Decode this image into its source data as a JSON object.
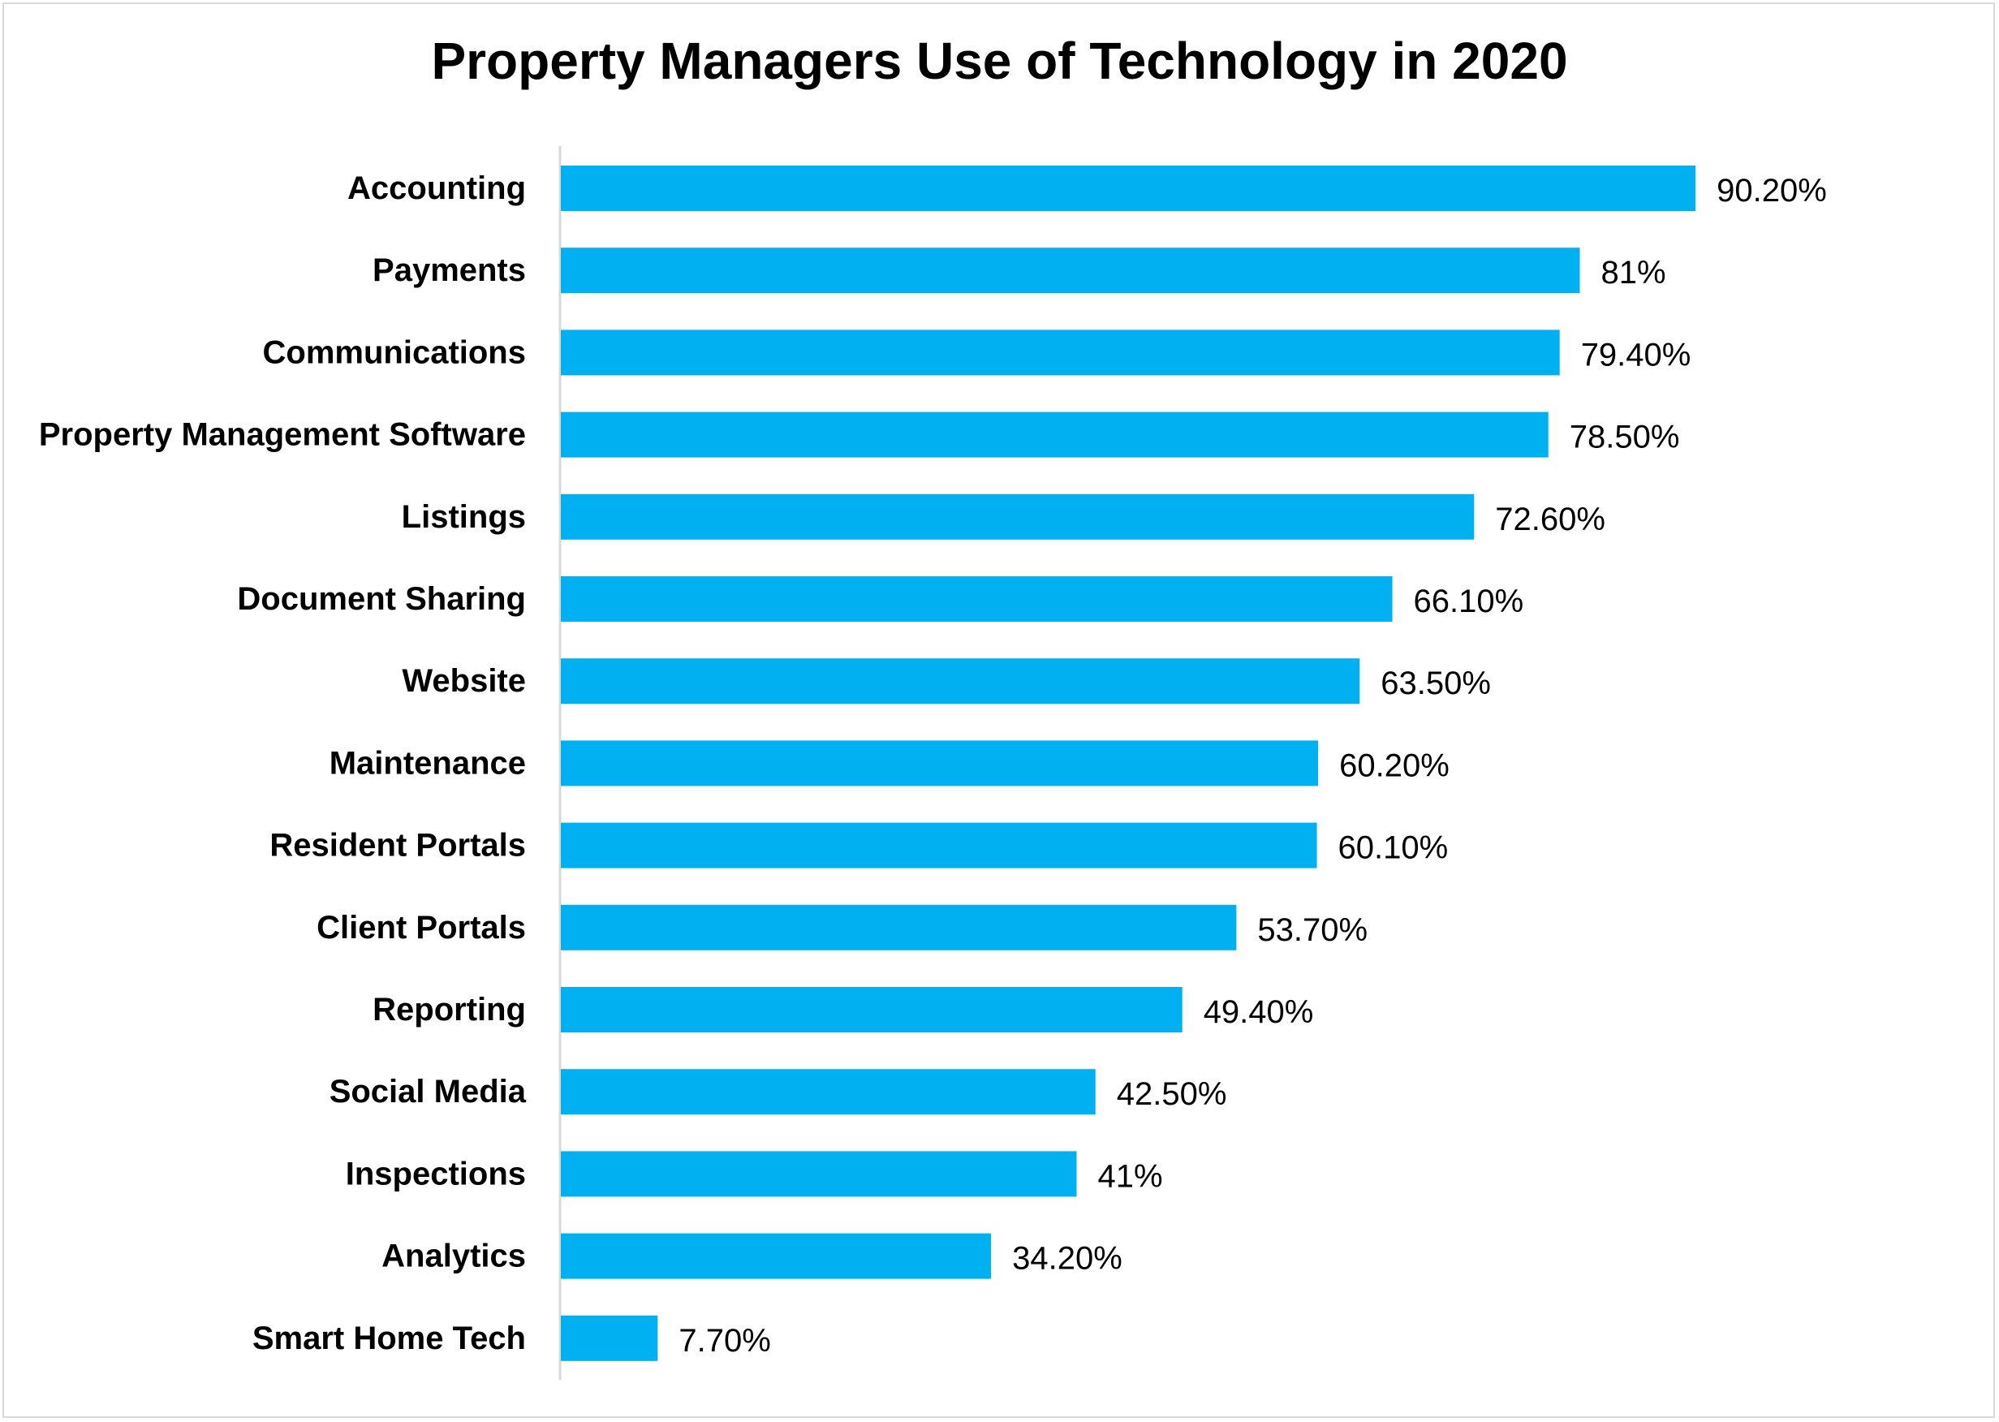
{
  "chart_data": {
    "type": "bar",
    "orientation": "horizontal",
    "title": "Property Managers Use of Technology in 2020",
    "xlabel": "",
    "ylabel": "",
    "xlim": [
      0,
      100
    ],
    "grid": false,
    "legend": "none",
    "bar_color": "#00b0f0",
    "categories": [
      "Accounting",
      "Payments",
      "Communications",
      "Property Management Software",
      "Listings",
      "Document Sharing",
      "Website",
      "Maintenance",
      "Resident Portals",
      "Client Portals",
      "Reporting",
      "Social Media",
      "Inspections",
      "Analytics",
      "Smart Home Tech"
    ],
    "values": [
      90.2,
      81,
      79.4,
      78.5,
      72.6,
      66.1,
      63.5,
      60.2,
      60.1,
      53.7,
      49.4,
      42.5,
      41,
      34.2,
      7.7
    ],
    "data_labels": [
      "90.20%",
      "81%",
      "79.40%",
      "78.50%",
      "72.60%",
      "66.10%",
      "63.50%",
      "60.20%",
      "60.10%",
      "53.70%",
      "49.40%",
      "42.50%",
      "41%",
      "34.20%",
      "7.70%"
    ]
  }
}
